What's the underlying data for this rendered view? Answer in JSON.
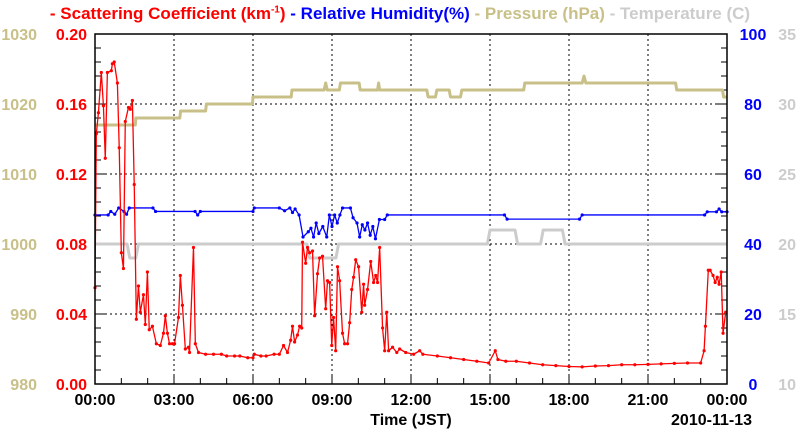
{
  "chart_data": {
    "type": "line",
    "title": "",
    "legend_position": "top",
    "xlabel": "Time (JST)",
    "date_label": "2010-11-13",
    "x_range_hours": [
      0,
      24
    ],
    "x_ticks": [
      "00:00",
      "03:00",
      "06:00",
      "09:00",
      "12:00",
      "15:00",
      "18:00",
      "21:00",
      "00:00"
    ],
    "grid": true,
    "colors": {
      "scattering": "#ff0000",
      "humidity": "#0000ff",
      "pressure": "#c8c088",
      "temperature": "#cccccc",
      "grid": "#000000"
    },
    "legend": {
      "scattering": {
        "dash": "-",
        "text": "Scattering Coefficient (km",
        "sup": "-1",
        "close": ")"
      },
      "humidity": {
        "dash": "-",
        "text": "Relative Humidity(%)"
      },
      "pressure": {
        "dash": "-",
        "text": "Pressure (hPa)"
      },
      "temperature": {
        "dash": "-",
        "text": "Temperature (",
        "deg": "°",
        "close": "C)"
      }
    },
    "axes": {
      "scattering": {
        "range": [
          0,
          0.2
        ],
        "ticks": [
          "0.00",
          "0.04",
          "0.08",
          "0.12",
          "0.16",
          "0.20"
        ]
      },
      "pressure": {
        "range": [
          980,
          1030
        ],
        "ticks": [
          "980",
          "990",
          "1000",
          "1010",
          "1020",
          "1030"
        ]
      },
      "humidity": {
        "range": [
          0,
          100
        ],
        "ticks": [
          "0",
          "20",
          "40",
          "60",
          "80",
          "100"
        ]
      },
      "temperature": {
        "range": [
          10,
          35
        ],
        "ticks": [
          "10",
          "15",
          "20",
          "25",
          "30",
          "35"
        ]
      }
    },
    "series": [
      {
        "name": "Scattering Coefficient",
        "unit": "km-1",
        "axis": "scattering",
        "markers": true,
        "points": [
          [
            0,
            0.055
          ],
          [
            0.05,
            0.143
          ],
          [
            0.13,
            0.155
          ],
          [
            0.24,
            0.178
          ],
          [
            0.32,
            0.159
          ],
          [
            0.39,
            0.129
          ],
          [
            0.47,
            0.178
          ],
          [
            0.62,
            0.179
          ],
          [
            0.66,
            0.183
          ],
          [
            0.73,
            0.184
          ],
          [
            0.85,
            0.172
          ],
          [
            0.92,
            0.135
          ],
          [
            1.0,
            0.075
          ],
          [
            1.08,
            0.066
          ],
          [
            1.15,
            0.15
          ],
          [
            1.27,
            0.158
          ],
          [
            1.34,
            0.157
          ],
          [
            1.42,
            0.162
          ],
          [
            1.49,
            0.114
          ],
          [
            1.57,
            0.037
          ],
          [
            1.65,
            0.056
          ],
          [
            1.72,
            0.041
          ],
          [
            1.84,
            0.051
          ],
          [
            1.91,
            0.034
          ],
          [
            1.99,
            0.064
          ],
          [
            2.06,
            0.031
          ],
          [
            2.18,
            0.033
          ],
          [
            2.33,
            0.023
          ],
          [
            2.48,
            0.022
          ],
          [
            2.6,
            0.029
          ],
          [
            2.67,
            0.039
          ],
          [
            2.75,
            0.029
          ],
          [
            2.83,
            0.023
          ],
          [
            2.94,
            0.023
          ],
          [
            3.02,
            0.023
          ],
          [
            3.17,
            0.038
          ],
          [
            3.24,
            0.062
          ],
          [
            3.32,
            0.045
          ],
          [
            3.43,
            0.02
          ],
          [
            3.55,
            0.021
          ],
          [
            3.59,
            0.018
          ],
          [
            3.74,
            0.078
          ],
          [
            3.81,
            0.023
          ],
          [
            3.93,
            0.018
          ],
          [
            4.2,
            0.017
          ],
          [
            4.5,
            0.017
          ],
          [
            4.8,
            0.017
          ],
          [
            5.0,
            0.016
          ],
          [
            5.3,
            0.016
          ],
          [
            5.5,
            0.016
          ],
          [
            5.8,
            0.015
          ],
          [
            6.0,
            0.015
          ],
          [
            6.05,
            0.017
          ],
          [
            6.3,
            0.016
          ],
          [
            6.5,
            0.016
          ],
          [
            6.8,
            0.017
          ],
          [
            7.0,
            0.017
          ],
          [
            7.16,
            0.022
          ],
          [
            7.31,
            0.018
          ],
          [
            7.43,
            0.025
          ],
          [
            7.5,
            0.033
          ],
          [
            7.58,
            0.024
          ],
          [
            7.69,
            0.028
          ],
          [
            7.77,
            0.033
          ],
          [
            7.85,
            0.032
          ],
          [
            7.88,
            0.081
          ],
          [
            8.0,
            0.069
          ],
          [
            8.07,
            0.078
          ],
          [
            8.15,
            0.075
          ],
          [
            8.26,
            0.076
          ],
          [
            8.34,
            0.039
          ],
          [
            8.45,
            0.063
          ],
          [
            8.53,
            0.072
          ],
          [
            8.64,
            0.073
          ],
          [
            8.76,
            0.043
          ],
          [
            8.83,
            0.059
          ],
          [
            8.91,
            0.058
          ],
          [
            8.99,
            0.022
          ],
          [
            9.06,
            0.038
          ],
          [
            9.14,
            0.019
          ],
          [
            9.21,
            0.067
          ],
          [
            9.29,
            0.059
          ],
          [
            9.4,
            0.029
          ],
          [
            9.48,
            0.023
          ],
          [
            9.59,
            0.023
          ],
          [
            9.67,
            0.035
          ],
          [
            9.75,
            0.054
          ],
          [
            9.82,
            0.061
          ],
          [
            9.9,
            0.071
          ],
          [
            10.01,
            0.067
          ],
          [
            10.13,
            0.041
          ],
          [
            10.2,
            0.057
          ],
          [
            10.24,
            0.045
          ],
          [
            10.35,
            0.054
          ],
          [
            10.47,
            0.07
          ],
          [
            10.58,
            0.058
          ],
          [
            10.66,
            0.062
          ],
          [
            10.73,
            0.058
          ],
          [
            10.81,
            0.078
          ],
          [
            10.92,
            0.032
          ],
          [
            11.0,
            0.019
          ],
          [
            11.08,
            0.041
          ],
          [
            11.15,
            0.019
          ],
          [
            11.3,
            0.021
          ],
          [
            11.46,
            0.018
          ],
          [
            11.57,
            0.02
          ],
          [
            11.8,
            0.018
          ],
          [
            12.1,
            0.017
          ],
          [
            12.33,
            0.019
          ],
          [
            12.45,
            0.017
          ],
          [
            13.0,
            0.016
          ],
          [
            13.5,
            0.015
          ],
          [
            14.0,
            0.014
          ],
          [
            14.5,
            0.013
          ],
          [
            14.95,
            0.012
          ],
          [
            15.2,
            0.019
          ],
          [
            15.3,
            0.014
          ],
          [
            15.6,
            0.013
          ],
          [
            16.0,
            0.013
          ],
          [
            16.5,
            0.012
          ],
          [
            17.0,
            0.011
          ],
          [
            17.5,
            0.0105
          ],
          [
            18.0,
            0.01
          ],
          [
            18.5,
            0.0098
          ],
          [
            19.0,
            0.0103
          ],
          [
            19.5,
            0.0105
          ],
          [
            20.0,
            0.011
          ],
          [
            20.5,
            0.011
          ],
          [
            21.0,
            0.0112
          ],
          [
            21.5,
            0.0115
          ],
          [
            22.0,
            0.0118
          ],
          [
            22.5,
            0.012
          ],
          [
            23.0,
            0.012
          ],
          [
            23.13,
            0.019
          ],
          [
            23.18,
            0.033
          ],
          [
            23.29,
            0.065
          ],
          [
            23.36,
            0.065
          ],
          [
            23.47,
            0.062
          ],
          [
            23.55,
            0.058
          ],
          [
            23.63,
            0.061
          ],
          [
            23.7,
            0.057
          ],
          [
            23.78,
            0.064
          ],
          [
            23.85,
            0.029
          ],
          [
            23.95,
            0.041
          ]
        ]
      },
      {
        "name": "Relative Humidity",
        "unit": "%",
        "axis": "humidity",
        "markers": true,
        "points": [
          [
            0,
            48.3
          ],
          [
            0.5,
            48.3
          ],
          [
            0.6,
            49.3
          ],
          [
            0.75,
            48.5
          ],
          [
            0.9,
            50.3
          ],
          [
            1.1,
            49.3
          ],
          [
            1.2,
            48.5
          ],
          [
            1.3,
            50.3
          ],
          [
            2.2,
            50.3
          ],
          [
            2.3,
            49.3
          ],
          [
            3.8,
            49.3
          ],
          [
            3.9,
            48.3
          ],
          [
            4.0,
            49.3
          ],
          [
            6.0,
            49.3
          ],
          [
            6.05,
            50.3
          ],
          [
            7.0,
            50.3
          ],
          [
            7.2,
            49.5
          ],
          [
            7.4,
            50.3
          ],
          [
            7.5,
            49
          ],
          [
            7.6,
            50
          ],
          [
            7.75,
            48.3
          ],
          [
            7.9,
            42
          ],
          [
            8.1,
            43.5
          ],
          [
            8.2,
            44.5
          ],
          [
            8.3,
            42
          ],
          [
            8.4,
            46
          ],
          [
            8.5,
            43
          ],
          [
            8.65,
            45
          ],
          [
            8.8,
            42
          ],
          [
            8.9,
            48.3
          ],
          [
            9.0,
            45
          ],
          [
            9.1,
            48.3
          ],
          [
            9.2,
            46
          ],
          [
            9.3,
            48.3
          ],
          [
            9.4,
            50.3
          ],
          [
            9.7,
            50.3
          ],
          [
            9.8,
            47.5
          ],
          [
            9.95,
            46
          ],
          [
            10.05,
            42
          ],
          [
            10.15,
            45.5
          ],
          [
            10.25,
            44
          ],
          [
            10.35,
            46
          ],
          [
            10.45,
            42.5
          ],
          [
            10.55,
            45
          ],
          [
            10.65,
            41.5
          ],
          [
            10.8,
            47
          ],
          [
            11.0,
            47
          ],
          [
            11.1,
            48.3
          ],
          [
            15.55,
            48.3
          ],
          [
            15.65,
            47.1
          ],
          [
            18.4,
            47.1
          ],
          [
            18.5,
            48.3
          ],
          [
            23.15,
            48.3
          ],
          [
            23.25,
            49.2
          ],
          [
            23.6,
            49.2
          ],
          [
            23.7,
            50
          ],
          [
            23.8,
            49.2
          ],
          [
            24,
            49.2
          ]
        ]
      },
      {
        "name": "Pressure",
        "unit": "hPa",
        "axis": "pressure",
        "markers": false,
        "points": [
          [
            0,
            1017
          ],
          [
            1.53,
            1017
          ],
          [
            1.55,
            1018
          ],
          [
            3.22,
            1018
          ],
          [
            3.25,
            1019
          ],
          [
            4.2,
            1019
          ],
          [
            4.23,
            1020
          ],
          [
            5.98,
            1020
          ],
          [
            6.0,
            1021
          ],
          [
            7.45,
            1021
          ],
          [
            7.48,
            1022
          ],
          [
            8.7,
            1022
          ],
          [
            8.76,
            1023
          ],
          [
            8.82,
            1022
          ],
          [
            9.28,
            1022
          ],
          [
            9.32,
            1023
          ],
          [
            10.03,
            1023
          ],
          [
            10.07,
            1022
          ],
          [
            10.73,
            1022
          ],
          [
            10.77,
            1023
          ],
          [
            10.81,
            1022
          ],
          [
            12.6,
            1022
          ],
          [
            12.65,
            1021
          ],
          [
            12.93,
            1021
          ],
          [
            12.98,
            1022
          ],
          [
            13.45,
            1022
          ],
          [
            13.5,
            1021
          ],
          [
            13.88,
            1021
          ],
          [
            13.93,
            1022
          ],
          [
            16.28,
            1022
          ],
          [
            16.32,
            1023
          ],
          [
            18.5,
            1023
          ],
          [
            18.57,
            1024
          ],
          [
            18.64,
            1023
          ],
          [
            22.05,
            1023
          ],
          [
            22.09,
            1022
          ],
          [
            23.83,
            1022
          ],
          [
            23.87,
            1021
          ],
          [
            24,
            1021
          ]
        ]
      },
      {
        "name": "Temperature",
        "unit": "°C",
        "axis": "temperature",
        "markers": false,
        "points": [
          [
            0,
            20
          ],
          [
            1.22,
            20
          ],
          [
            1.32,
            19
          ],
          [
            1.55,
            19
          ],
          [
            1.65,
            20
          ],
          [
            8.05,
            20
          ],
          [
            8.15,
            19
          ],
          [
            9.15,
            19
          ],
          [
            9.25,
            20
          ],
          [
            14.9,
            20
          ],
          [
            15.0,
            21
          ],
          [
            15.95,
            21
          ],
          [
            16.05,
            20
          ],
          [
            16.92,
            20
          ],
          [
            17.02,
            21
          ],
          [
            17.75,
            21
          ],
          [
            17.85,
            20
          ],
          [
            24,
            20
          ]
        ]
      }
    ]
  }
}
